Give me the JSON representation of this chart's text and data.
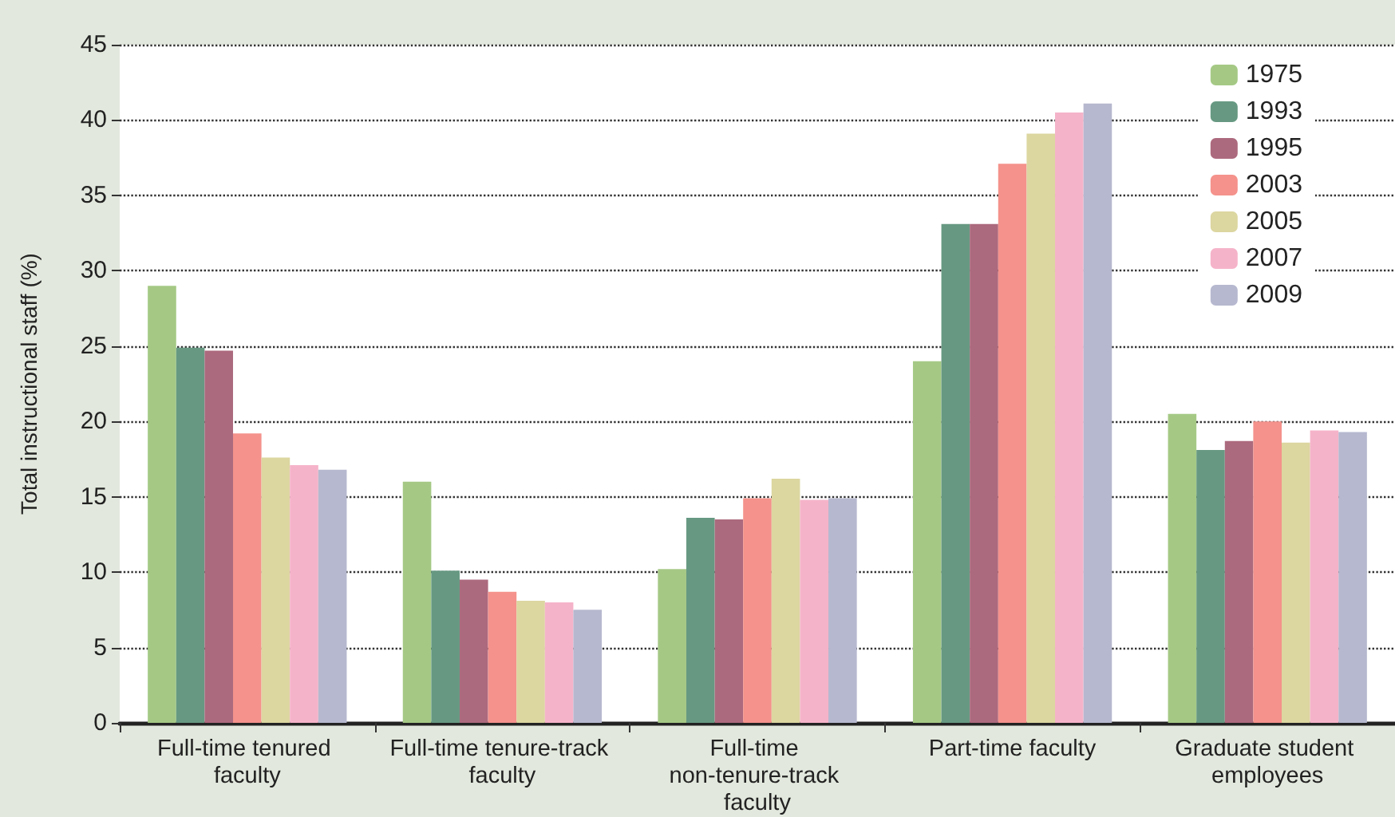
{
  "chart_data": {
    "type": "bar",
    "ylabel": "Total instructional staff (%)",
    "categories": [
      "Full-time tenured faculty",
      "Full-time tenure-track faculty",
      "Full-time non-tenure-track faculty",
      "Part-time faculty",
      "Graduate student employees"
    ],
    "series": [
      {
        "name": "1975",
        "color": "#a5c985",
        "values": [
          29,
          16,
          10.2,
          24,
          20.5
        ]
      },
      {
        "name": "1993",
        "color": "#679982",
        "values": [
          24.9,
          10.1,
          13.6,
          33.1,
          18.1
        ]
      },
      {
        "name": "1995",
        "color": "#ac6a7e",
        "values": [
          24.7,
          9.5,
          13.5,
          33.1,
          18.7
        ]
      },
      {
        "name": "2003",
        "color": "#f4928b",
        "values": [
          19.2,
          8.7,
          14.9,
          37.1,
          20
        ]
      },
      {
        "name": "2005",
        "color": "#dcd6a0",
        "values": [
          17.6,
          8.1,
          16.2,
          39.1,
          18.6
        ]
      },
      {
        "name": "2007",
        "color": "#f5b3c9",
        "values": [
          17.1,
          8,
          14.8,
          40.5,
          19.4
        ]
      },
      {
        "name": "2009",
        "color": "#b6b8cf",
        "values": [
          16.8,
          7.5,
          14.9,
          41.1,
          19.3
        ]
      }
    ],
    "ylim": [
      0,
      45
    ],
    "yticks": [
      0,
      5,
      10,
      15,
      20,
      25,
      30,
      35,
      40,
      45
    ],
    "grid": "y",
    "legend": "top right"
  }
}
